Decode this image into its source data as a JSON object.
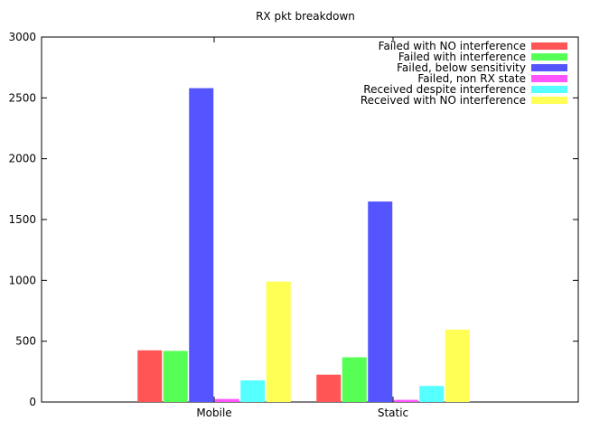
{
  "chart_data": {
    "type": "bar",
    "title": "RX pkt breakdown",
    "xlabel": "",
    "ylabel": "",
    "categories": [
      "Mobile",
      "Static"
    ],
    "ylim": [
      0,
      3000
    ],
    "yticks": [
      0,
      500,
      1000,
      1500,
      2000,
      2500,
      3000
    ],
    "grid": false,
    "legend_position": "top-right",
    "series": [
      {
        "name": "Failed with NO interference",
        "color": "#ff5555",
        "values": [
          425,
          225
        ]
      },
      {
        "name": "Failed with interference",
        "color": "#55ff55",
        "values": [
          420,
          368
        ]
      },
      {
        "name": "Failed, below sensitivity",
        "color": "#5555ff",
        "values": [
          2580,
          1648
        ]
      },
      {
        "name": "Failed, non RX state",
        "color": "#ff55ff",
        "values": [
          25,
          18
        ]
      },
      {
        "name": "Received despite interference",
        "color": "#55ffff",
        "values": [
          178,
          132
        ]
      },
      {
        "name": "Received with NO interference",
        "color": "#ffff55",
        "values": [
          990,
          595
        ]
      }
    ]
  }
}
